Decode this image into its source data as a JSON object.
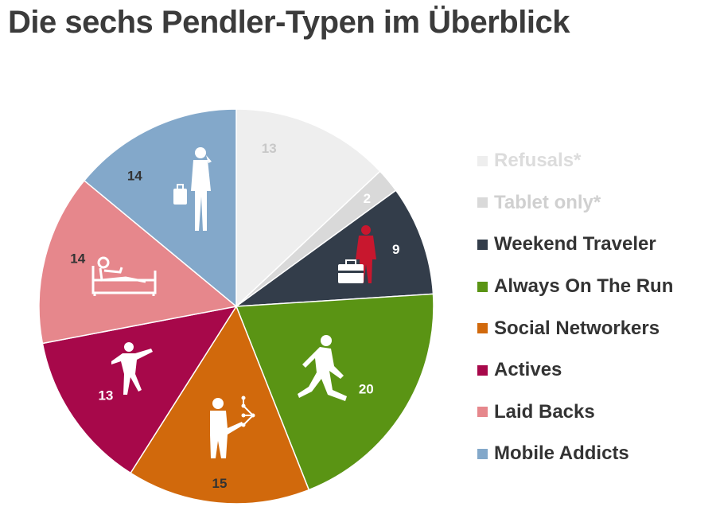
{
  "title": "Die sechs Pendler-Typen im Überblick",
  "chart_data": {
    "type": "pie",
    "title": "Die sechs Pendler-Typen im Überblick",
    "start_angle_deg": 0,
    "direction": "clockwise",
    "slices": [
      {
        "label": "Refusals*",
        "value": 13,
        "color": "#eeeeee",
        "label_color": "#c8c8c8",
        "legend_text_color": "#dcdcdc",
        "icon": ""
      },
      {
        "label": "Tablet only*",
        "value": 2,
        "color": "#d9d9d9",
        "label_color": "#ffffff",
        "legend_text_color": "#d0d0d0",
        "icon": ""
      },
      {
        "label": "Weekend Traveler",
        "value": 9,
        "color": "#333d4a",
        "label_color": "#ffffff",
        "legend_text_color": "#333333",
        "icon": "traveler-suitcase-icon"
      },
      {
        "label": "Always On The Run",
        "value": 20,
        "color": "#5a9414",
        "label_color": "#ffffff",
        "legend_text_color": "#333333",
        "icon": "runner-icon"
      },
      {
        "label": "Social Networkers",
        "value": 15,
        "color": "#d1690c",
        "label_color": "#333333",
        "legend_text_color": "#333333",
        "icon": "person-network-icon"
      },
      {
        "label": "Actives",
        "value": 13,
        "color": "#a7084a",
        "label_color": "#ffffff",
        "legend_text_color": "#333333",
        "icon": "active-person-icon"
      },
      {
        "label": "Laid Backs",
        "value": 14,
        "color": "#e6878c",
        "label_color": "#333333",
        "legend_text_color": "#333333",
        "icon": "reclining-person-icon"
      },
      {
        "label": "Mobile Addicts",
        "value": 14,
        "color": "#83a8ca",
        "label_color": "#333333",
        "legend_text_color": "#333333",
        "icon": "businessman-phone-icon"
      }
    ]
  }
}
